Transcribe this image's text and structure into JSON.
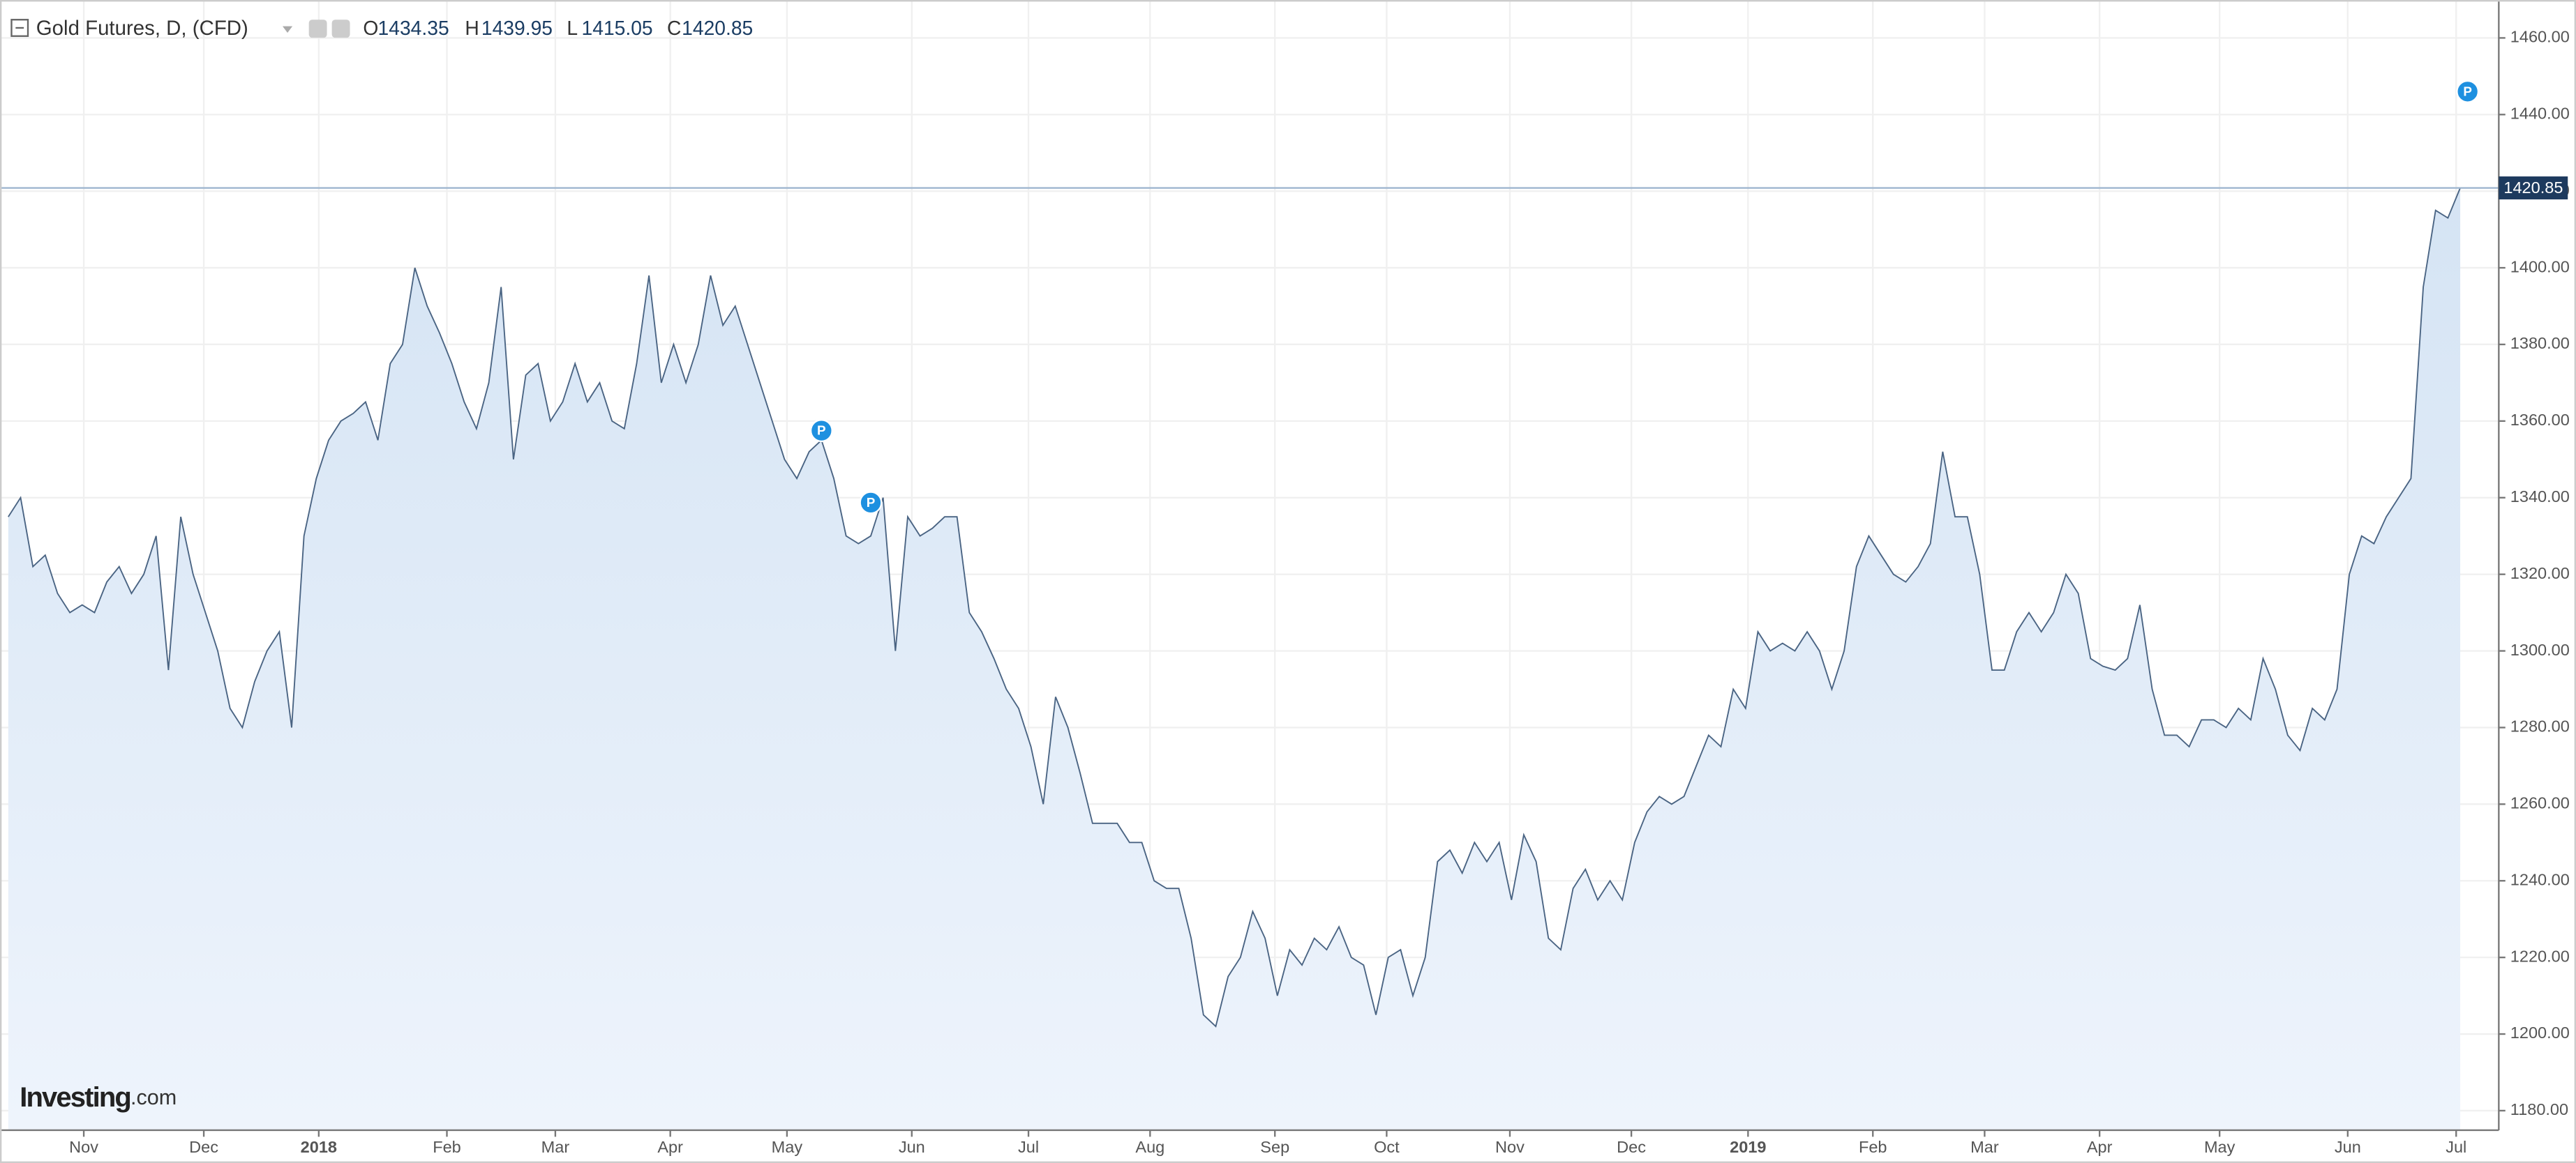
{
  "chart_data": {
    "type": "area",
    "title": "Gold Futures, D, (CFD)",
    "ohlc": {
      "open_label": "O",
      "open": 1434.35,
      "high_label": "H",
      "high": 1439.95,
      "low_label": "L",
      "low": 1415.05,
      "close_label": "C",
      "close": 1420.85
    },
    "logo": {
      "main": "Investing",
      "suffix": ".com"
    },
    "line_color": "#4a6483",
    "fill_color": "#dbe8f6",
    "grid": true,
    "values": [
      1335,
      1340,
      1322,
      1325,
      1315,
      1310,
      1312,
      1310,
      1318,
      1322,
      1315,
      1320,
      1330,
      1295,
      1335,
      1320,
      1310,
      1300,
      1285,
      1280,
      1292,
      1300,
      1305,
      1280,
      1330,
      1345,
      1355,
      1360,
      1362,
      1365,
      1355,
      1375,
      1380,
      1400,
      1390,
      1383,
      1375,
      1365,
      1358,
      1370,
      1395,
      1350,
      1372,
      1375,
      1360,
      1365,
      1375,
      1365,
      1370,
      1360,
      1358,
      1375,
      1398,
      1370,
      1380,
      1370,
      1380,
      1398,
      1385,
      1390,
      1380,
      1370,
      1360,
      1350,
      1345,
      1352,
      1355,
      1345,
      1330,
      1328,
      1330,
      1340,
      1300,
      1335,
      1330,
      1332,
      1335,
      1335,
      1310,
      1305,
      1298,
      1290,
      1285,
      1275,
      1260,
      1288,
      1280,
      1268,
      1255,
      1255,
      1255,
      1250,
      1250,
      1240,
      1238,
      1238,
      1225,
      1205,
      1202,
      1215,
      1220,
      1232,
      1225,
      1210,
      1222,
      1218,
      1225,
      1222,
      1228,
      1220,
      1218,
      1205,
      1220,
      1222,
      1210,
      1220,
      1245,
      1248,
      1242,
      1250,
      1245,
      1250,
      1235,
      1252,
      1245,
      1225,
      1222,
      1238,
      1243,
      1235,
      1240,
      1235,
      1250,
      1258,
      1262,
      1260,
      1262,
      1270,
      1278,
      1275,
      1290,
      1285,
      1305,
      1300,
      1302,
      1300,
      1305,
      1300,
      1290,
      1300,
      1322,
      1330,
      1325,
      1320,
      1318,
      1322,
      1328,
      1352,
      1335,
      1335,
      1320,
      1295,
      1295,
      1305,
      1310,
      1305,
      1310,
      1320,
      1315,
      1298,
      1296,
      1295,
      1298,
      1312,
      1290,
      1278,
      1278,
      1275,
      1282,
      1282,
      1280,
      1285,
      1282,
      1298,
      1290,
      1278,
      1274,
      1285,
      1282,
      1290,
      1320,
      1330,
      1328,
      1335,
      1340,
      1345,
      1395,
      1415,
      1413,
      1420.85
    ],
    "xlim": [
      -0.67,
      202.13
    ],
    "xticks": [
      {
        "value": 6.13,
        "label": "Nov"
      },
      {
        "value": 15.87,
        "label": "Dec"
      },
      {
        "value": 25.2,
        "label": "2018"
      },
      {
        "value": 35.6,
        "label": "Feb"
      },
      {
        "value": 44.4,
        "label": "Mar"
      },
      {
        "value": 53.73,
        "label": "Apr"
      },
      {
        "value": 63.2,
        "label": "May"
      },
      {
        "value": 73.33,
        "label": "Jun"
      },
      {
        "value": 82.8,
        "label": "Jul"
      },
      {
        "value": 92.67,
        "label": "Aug"
      },
      {
        "value": 102.8,
        "label": "Sep"
      },
      {
        "value": 111.87,
        "label": "Oct"
      },
      {
        "value": 121.87,
        "label": "Nov"
      },
      {
        "value": 131.73,
        "label": "Dec"
      },
      {
        "value": 141.2,
        "label": "2019"
      },
      {
        "value": 151.33,
        "label": "Feb"
      },
      {
        "value": 160.4,
        "label": "Mar"
      },
      {
        "value": 169.73,
        "label": "Apr"
      },
      {
        "value": 179.47,
        "label": "May"
      },
      {
        "value": 189.87,
        "label": "Jun"
      },
      {
        "value": 198.67,
        "label": "Jul"
      }
    ],
    "ylim": [
      1174.9,
      1469.9
    ],
    "yticks": [
      {
        "value": 1180,
        "label": "1180.00"
      },
      {
        "value": 1200,
        "label": "1200.00"
      },
      {
        "value": 1220,
        "label": "1220.00"
      },
      {
        "value": 1240,
        "label": "1240.00"
      },
      {
        "value": 1260,
        "label": "1260.00"
      },
      {
        "value": 1280,
        "label": "1280.00"
      },
      {
        "value": 1300,
        "label": "1300.00"
      },
      {
        "value": 1320,
        "label": "1320.00"
      },
      {
        "value": 1340,
        "label": "1340.00"
      },
      {
        "value": 1360,
        "label": "1360.00"
      },
      {
        "value": 1380,
        "label": "1380.00"
      },
      {
        "value": 1400,
        "label": "1400.00"
      },
      {
        "value": 1420,
        "label": "1420.00"
      },
      {
        "value": 1440,
        "label": "1440.00"
      },
      {
        "value": 1460,
        "label": "1460.00"
      }
    ],
    "markers": [
      {
        "label": "P",
        "x": 66,
        "y": 1357.5
      },
      {
        "label": "P",
        "x": 70,
        "y": 1338.7
      },
      {
        "label": "P",
        "x": 199.6,
        "y": 1446
      }
    ]
  }
}
